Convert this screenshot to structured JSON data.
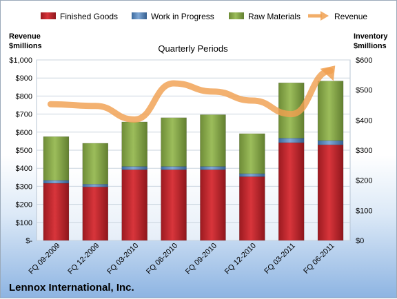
{
  "chart_data": {
    "type": "bar",
    "stacked": true,
    "title": "Quarterly Periods",
    "footer": "Lennox International, Inc.",
    "categories": [
      "FQ 09-2009",
      "FQ 12-2009",
      "FQ 03-2010",
      "FQ 06-2010",
      "FQ 09-2010",
      "FQ 12-2010",
      "FQ 03-2011",
      "FQ 06-2011"
    ],
    "series": [
      {
        "name": "Finished Goods",
        "axis": "right",
        "color": "#c0232a",
        "values": [
          190,
          178,
          235,
          235,
          235,
          212,
          325,
          318
        ]
      },
      {
        "name": "Work in Progress",
        "axis": "right",
        "color": "#4f81bd",
        "values": [
          10,
          9,
          11,
          11,
          11,
          10,
          15,
          14
        ]
      },
      {
        "name": "Raw Materials",
        "axis": "right",
        "color": "#8aad4a",
        "values": [
          145,
          136,
          148,
          162,
          172,
          133,
          184,
          198
        ]
      },
      {
        "name": "Revenue",
        "axis": "left",
        "type": "line",
        "color": "#f0a050",
        "values": [
          755,
          745,
          670,
          870,
          825,
          775,
          700,
          940
        ]
      }
    ],
    "left_axis": {
      "title_line1": "Revenue",
      "title_line2": "$millions",
      "ylim": [
        0,
        1000
      ],
      "ticks": [
        "$-",
        "$100",
        "$200",
        "$300",
        "$400",
        "$500",
        "$600",
        "$700",
        "$800",
        "$900",
        "$1,000"
      ]
    },
    "right_axis": {
      "title_line1": "Inventory",
      "title_line2": "$millions",
      "ylim": [
        0,
        600
      ],
      "ticks": [
        "$0",
        "$100",
        "$200",
        "$300",
        "$400",
        "$500",
        "$600"
      ]
    },
    "legend_position": "top",
    "grid": true
  }
}
